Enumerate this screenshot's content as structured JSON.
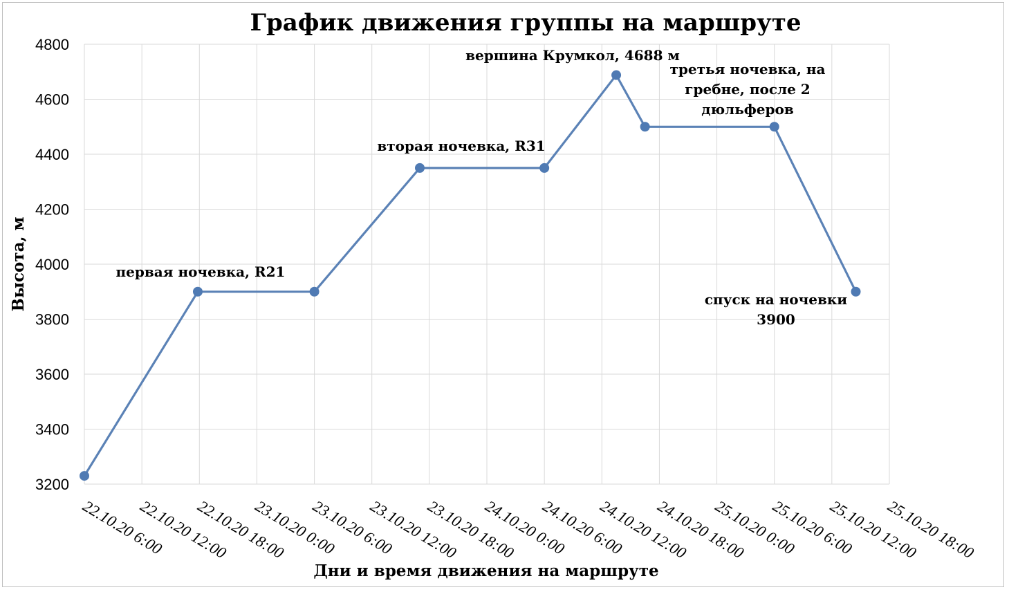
{
  "chart_data": {
    "type": "line",
    "title": "График движения группы на маршруте",
    "xlabel": "Дни и время движения на маршруте",
    "ylabel": "Высота, м",
    "ylim": [
      3200,
      4800
    ],
    "yticks": [
      3200,
      3400,
      3600,
      3800,
      4000,
      4200,
      4400,
      4600,
      4800
    ],
    "xlim": [
      "22.10.20 6:00",
      "25.10.20 18:00"
    ],
    "xtick_labels": [
      "22.10.20 6:00",
      "22.10.20 12:00",
      "22.10.20 18:00",
      "23.10.20 0:00",
      "23.10.20 6:00",
      "23.10.20 12:00",
      "23.10.20 18:00",
      "24.10.20 0:00",
      "24.10.20 6:00",
      "24.10.20 12:00",
      "24.10.20 18:00",
      "25.10.20 0:00",
      "25.10.20 6:00",
      "25.10.20 12:00",
      "25.10.20 18:00"
    ],
    "grid": true,
    "series": [
      {
        "points": [
          {
            "x": "22.10.20 6:00",
            "y": 3230
          },
          {
            "x": "22.10.20 17:50",
            "y": 3900
          },
          {
            "x": "23.10.20 6:00",
            "y": 3900
          },
          {
            "x": "23.10.20 17:00",
            "y": 4350
          },
          {
            "x": "24.10.20 6:00",
            "y": 4350
          },
          {
            "x": "24.10.20 13:30",
            "y": 4688
          },
          {
            "x": "24.10.20 16:30",
            "y": 4500
          },
          {
            "x": "25.10.20 6:00",
            "y": 4500
          },
          {
            "x": "25.10.20 14:30",
            "y": 3900
          }
        ]
      }
    ],
    "annotations": [
      {
        "lines": [
          "первая ночевка, R21"
        ]
      },
      {
        "lines": [
          "вторая ночевка, R31"
        ]
      },
      {
        "lines": [
          "вершина Крумкол, 4688 м"
        ]
      },
      {
        "lines": [
          "третья ночевка, на",
          "гребне, после  2",
          "дюльферов"
        ]
      },
      {
        "lines": [
          "спуск на ночевки",
          "3900"
        ]
      }
    ],
    "colors": {
      "series": "#4f7ab3",
      "grid": "#d9d9d9"
    }
  }
}
